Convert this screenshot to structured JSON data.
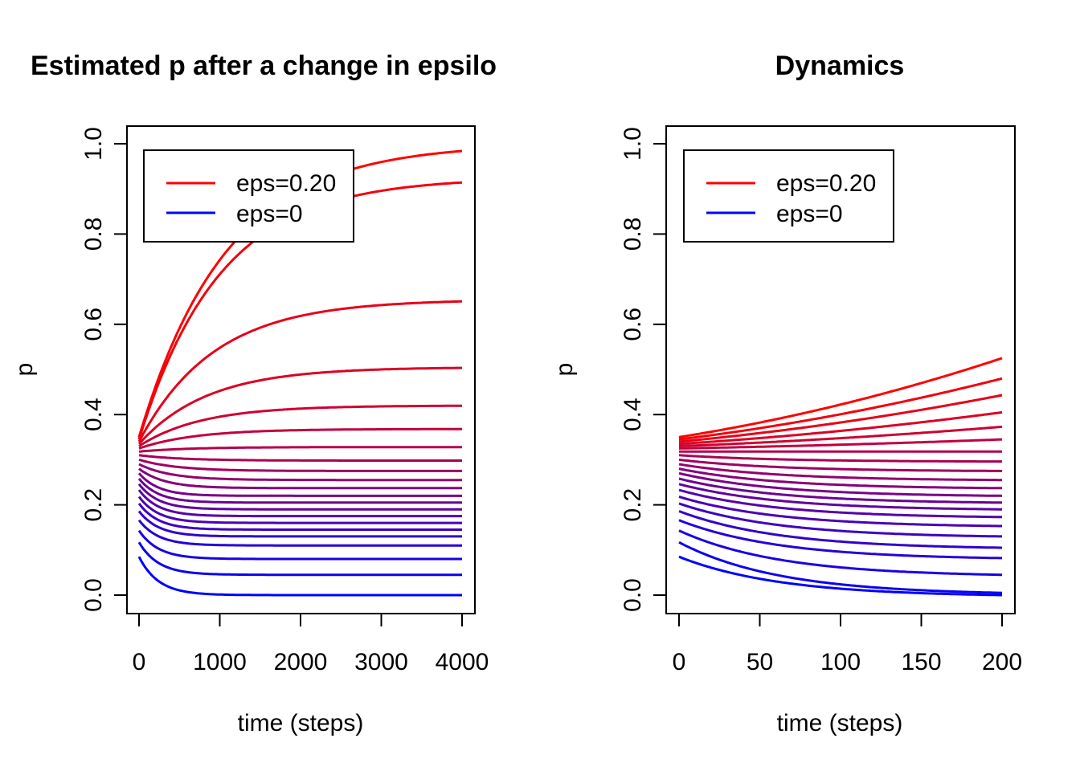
{
  "chart_data": [
    {
      "type": "line",
      "title": "Estimated p after a change in epsilo",
      "xlabel": "time (steps)",
      "ylabel": "p",
      "xlim": [
        0,
        4000
      ],
      "ylim": [
        0,
        1.0
      ],
      "xticks": [
        "0",
        "1000",
        "2000",
        "3000",
        "4000"
      ],
      "yticks": [
        "0.0",
        "0.2",
        "0.4",
        "0.6",
        "0.8",
        "1.0"
      ],
      "legend": {
        "position": "top-left",
        "entries": [
          {
            "label": "eps=0.20",
            "color": "#ff0000"
          },
          {
            "label": "eps=0",
            "color": "#0000ff"
          }
        ]
      },
      "color_gradient": [
        "#ff0000",
        "#0000ff"
      ],
      "series_start": [
        0.35,
        0.345,
        0.34,
        0.335,
        0.33,
        0.325,
        0.318,
        0.31,
        0.3,
        0.29,
        0.28,
        0.27,
        0.258,
        0.246,
        0.233,
        0.218,
        0.203,
        0.186,
        0.166,
        0.143,
        0.117,
        0.085
      ],
      "series_end": [
        1.0,
        0.925,
        0.655,
        0.505,
        0.42,
        0.368,
        0.328,
        0.298,
        0.275,
        0.255,
        0.237,
        0.22,
        0.205,
        0.19,
        0.175,
        0.16,
        0.145,
        0.13,
        0.11,
        0.08,
        0.045,
        0.0
      ]
    },
    {
      "type": "line",
      "title": "Dynamics",
      "xlabel": "time (steps)",
      "ylabel": "p",
      "xlim": [
        0,
        200
      ],
      "ylim": [
        0,
        1.0
      ],
      "xticks": [
        "0",
        "50",
        "100",
        "150",
        "200"
      ],
      "yticks": [
        "0.0",
        "0.2",
        "0.4",
        "0.6",
        "0.8",
        "1.0"
      ],
      "legend": {
        "position": "top-left",
        "entries": [
          {
            "label": "eps=0.20",
            "color": "#ff0000"
          },
          {
            "label": "eps=0",
            "color": "#0000ff"
          }
        ]
      },
      "color_gradient": [
        "#ff0000",
        "#0000ff"
      ],
      "series_start": [
        0.35,
        0.345,
        0.34,
        0.335,
        0.33,
        0.325,
        0.318,
        0.31,
        0.3,
        0.29,
        0.28,
        0.27,
        0.258,
        0.246,
        0.233,
        0.218,
        0.203,
        0.186,
        0.166,
        0.143,
        0.117,
        0.085
      ],
      "series_end": [
        0.525,
        0.48,
        0.443,
        0.405,
        0.373,
        0.345,
        0.318,
        0.296,
        0.275,
        0.255,
        0.237,
        0.22,
        0.205,
        0.19,
        0.173,
        0.153,
        0.13,
        0.105,
        0.082,
        0.045,
        0.005,
        0.0
      ]
    }
  ]
}
